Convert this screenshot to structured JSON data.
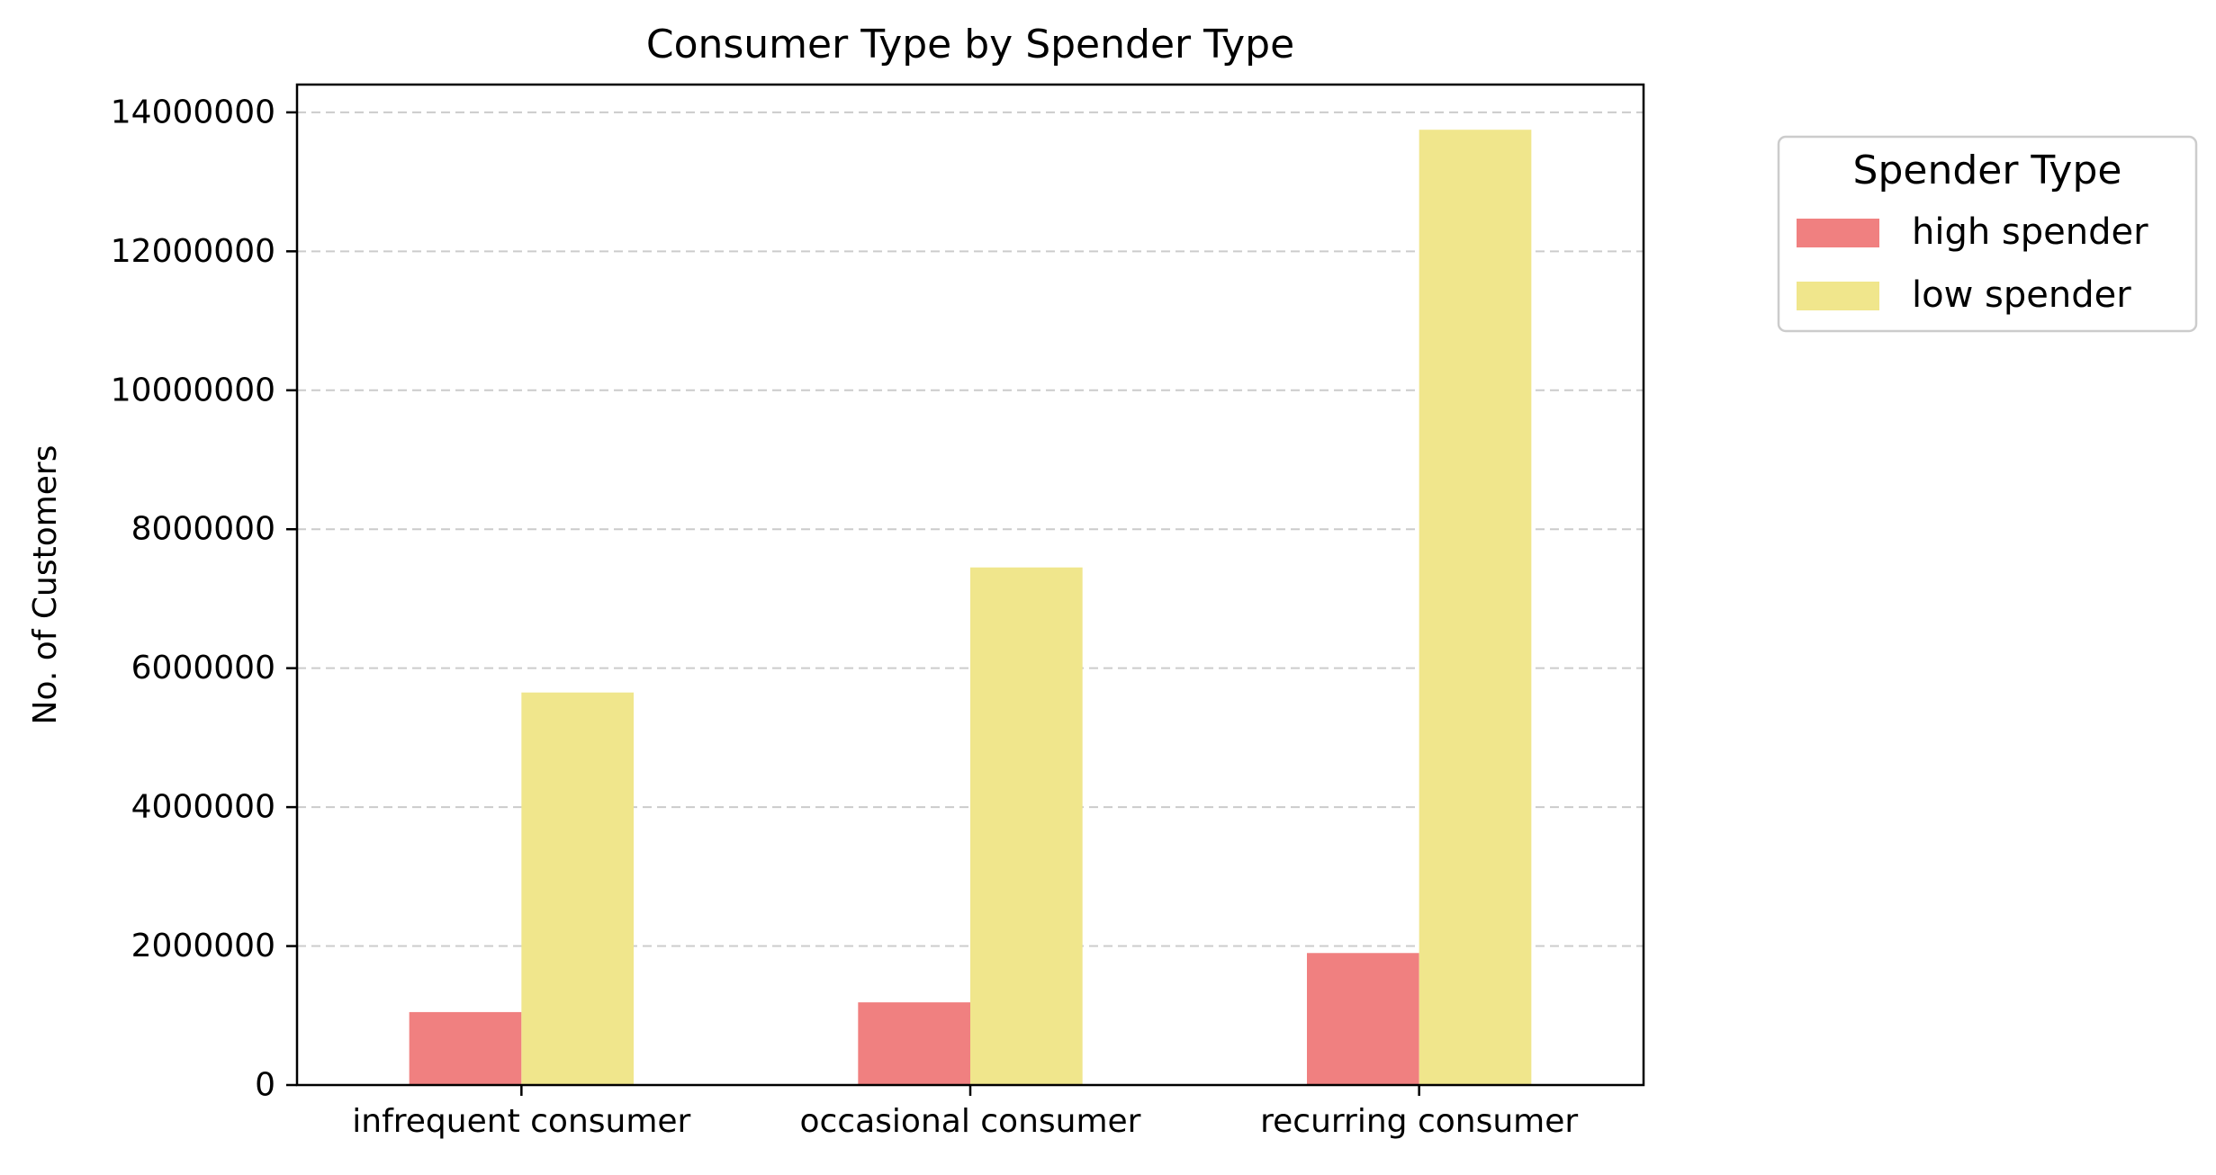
{
  "chart_data": {
    "type": "bar",
    "title": "Consumer Type by Spender Type",
    "xlabel": "",
    "ylabel": "No. of Customers",
    "categories": [
      "infrequent consumer",
      "occasional consumer",
      "recurring consumer"
    ],
    "series": [
      {
        "name": "high spender",
        "color": "#f08080",
        "values": [
          1050000,
          1190000,
          1900000
        ]
      },
      {
        "name": "low spender",
        "color": "#f0e68c",
        "values": [
          5650000,
          7450000,
          13750000
        ]
      }
    ],
    "ylim": [
      0,
      14400000
    ],
    "yticks": [
      0,
      2000000,
      4000000,
      6000000,
      8000000,
      10000000,
      12000000,
      14000000
    ],
    "ytick_labels": [
      "0",
      "2000000",
      "4000000",
      "6000000",
      "8000000",
      "10000000",
      "12000000",
      "14000000"
    ],
    "grid": "y-dashed",
    "legend": {
      "title": "Spender Type",
      "placement": "outside-right-top"
    }
  }
}
